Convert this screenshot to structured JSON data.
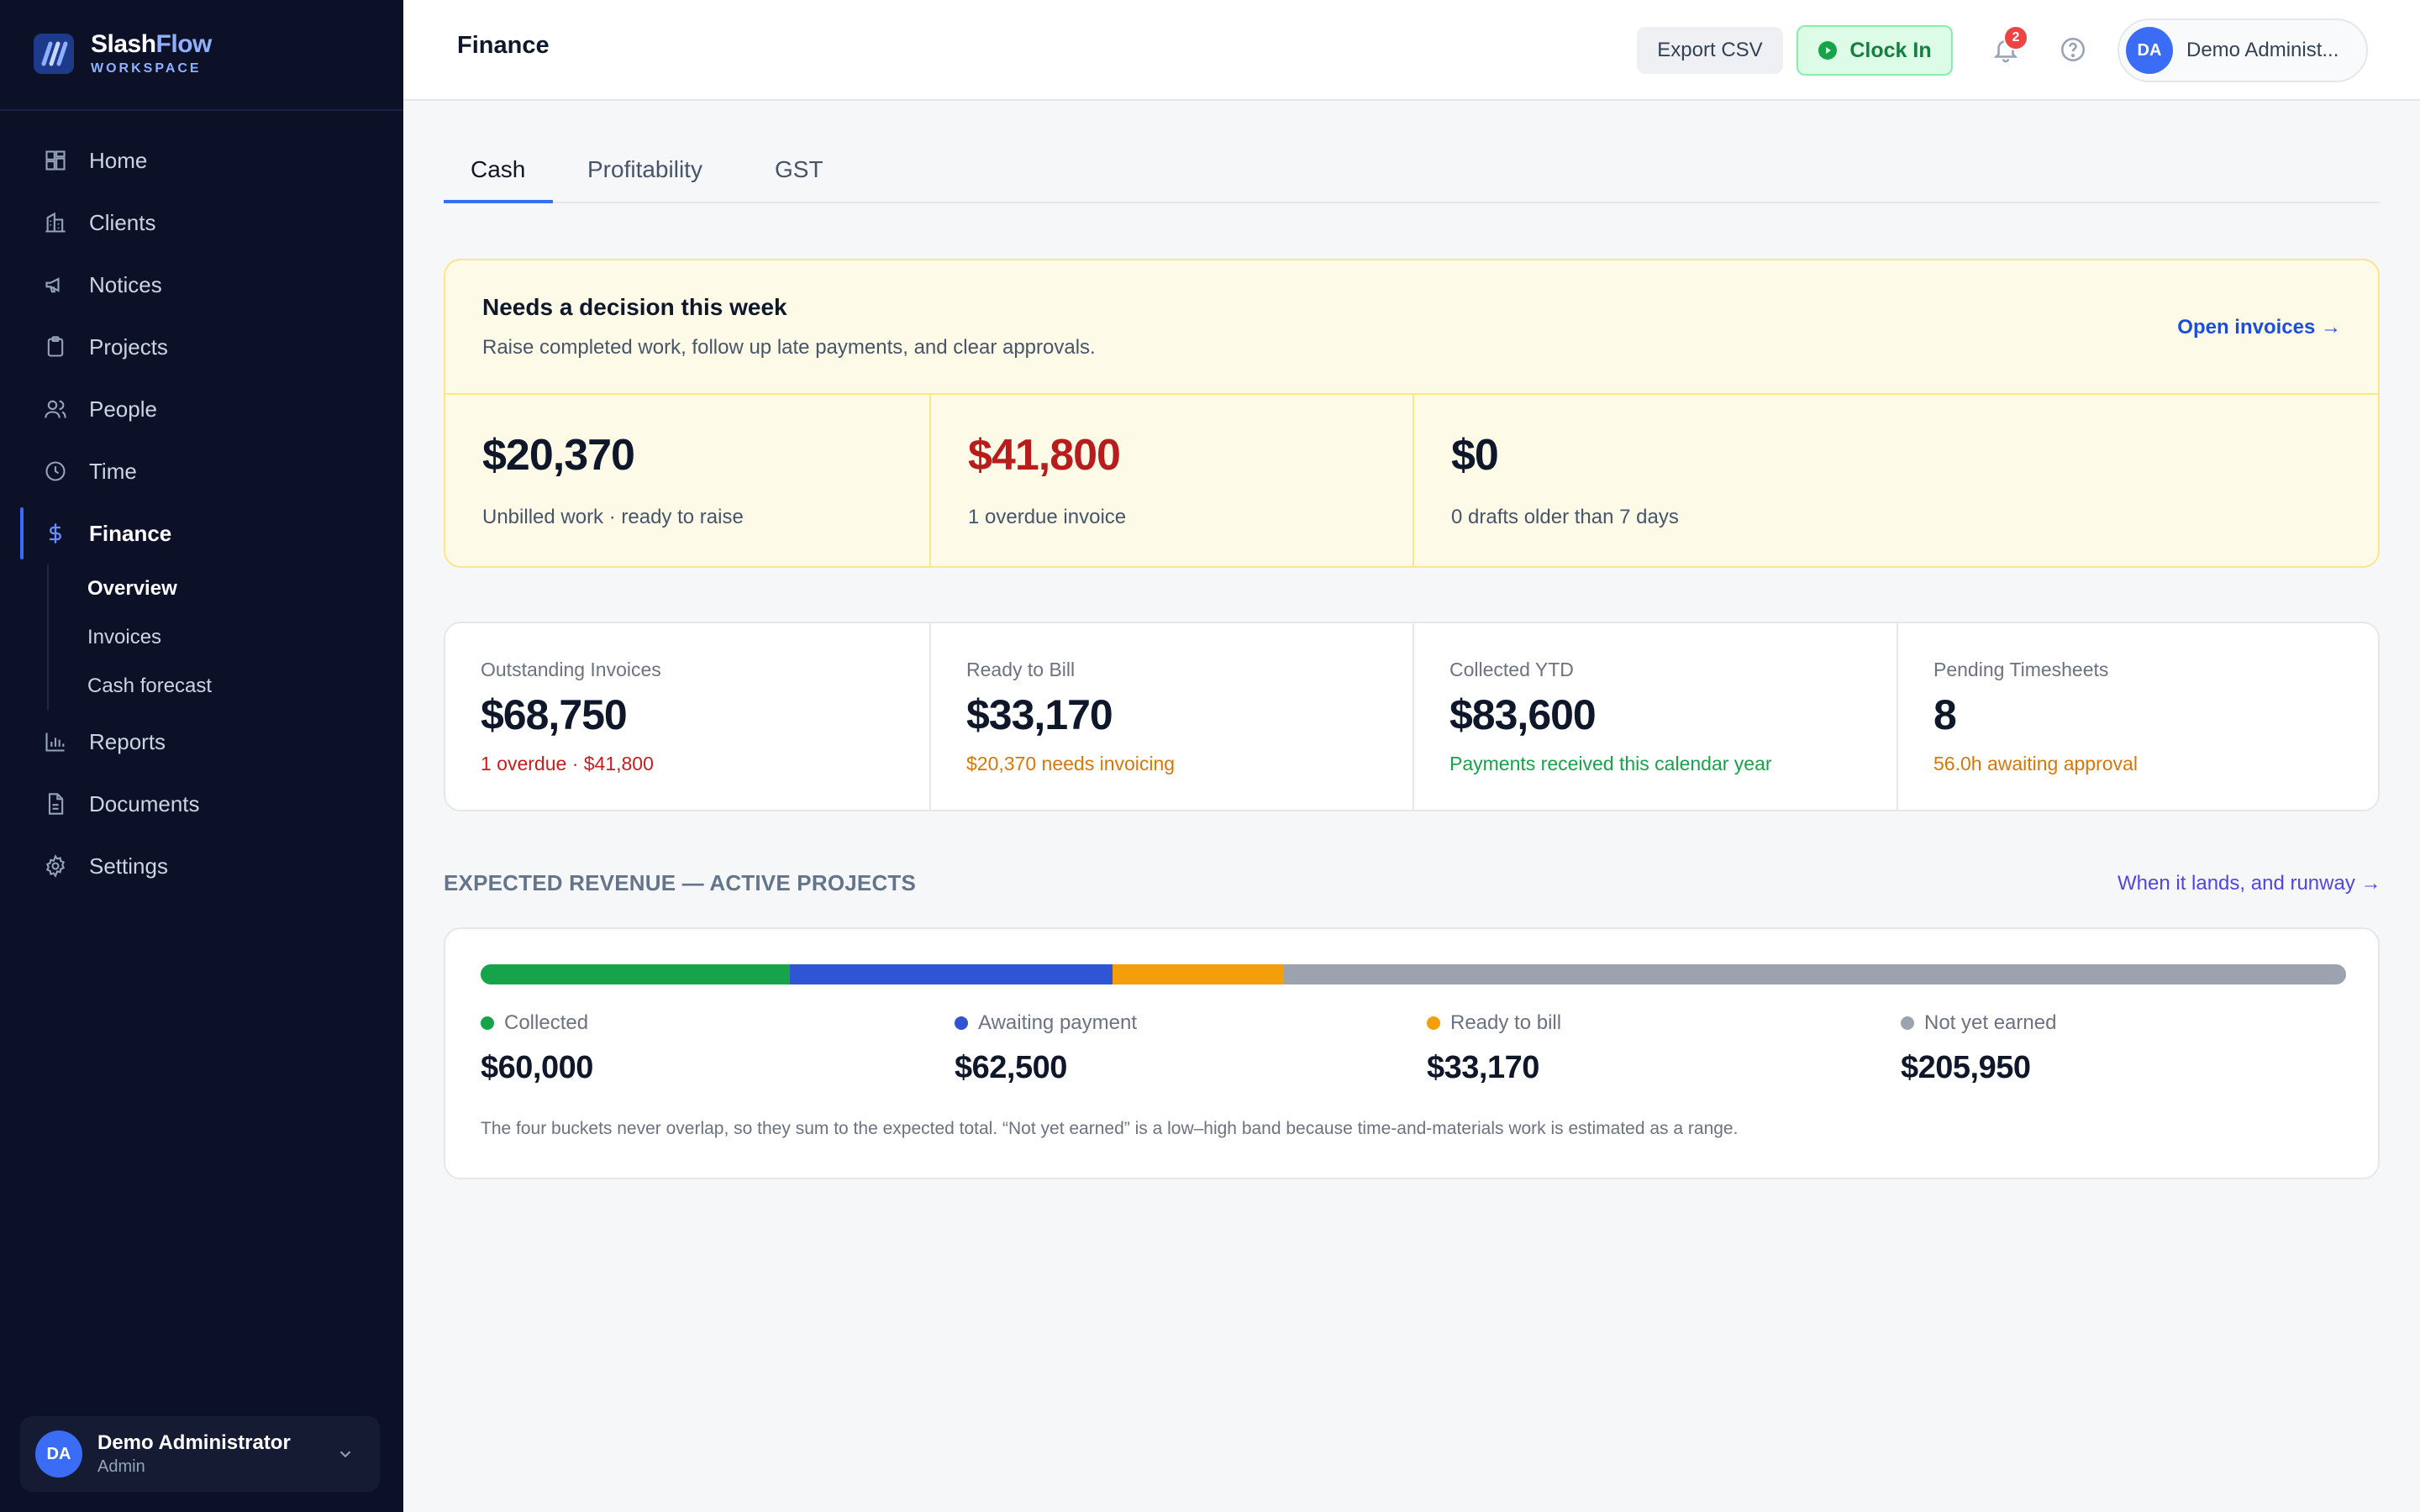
{
  "brand": {
    "name_a": "Slash",
    "name_b": "Flow",
    "subtitle": "WORKSPACE"
  },
  "nav": {
    "items": [
      {
        "label": "Home",
        "icon": "grid-icon"
      },
      {
        "label": "Clients",
        "icon": "building-icon"
      },
      {
        "label": "Notices",
        "icon": "megaphone-icon"
      },
      {
        "label": "Projects",
        "icon": "clipboard-icon"
      },
      {
        "label": "People",
        "icon": "users-icon"
      },
      {
        "label": "Time",
        "icon": "clock-icon"
      },
      {
        "label": "Finance",
        "icon": "dollar-icon"
      },
      {
        "label": "Reports",
        "icon": "bar-chart-icon"
      },
      {
        "label": "Documents",
        "icon": "document-icon"
      },
      {
        "label": "Settings",
        "icon": "gear-icon"
      }
    ],
    "active": "Finance",
    "finance_sub": [
      {
        "label": "Overview"
      },
      {
        "label": "Invoices"
      },
      {
        "label": "Cash forecast"
      }
    ],
    "active_sub": "Overview"
  },
  "user": {
    "initials": "DA",
    "name": "Demo Administrator",
    "role": "Admin",
    "pill_name": "Demo Administ..."
  },
  "header": {
    "title": "Finance",
    "export_label": "Export CSV",
    "clock_label": "Clock In",
    "notifications_count": "2"
  },
  "tabs": [
    {
      "label": "Cash"
    },
    {
      "label": "Profitability"
    },
    {
      "label": "GST"
    }
  ],
  "active_tab": "Cash",
  "decision": {
    "title": "Needs a decision this week",
    "subtitle": "Raise completed work, follow up late payments, and clear approvals.",
    "link": "Open invoices →",
    "cells": [
      {
        "value": "$20,370",
        "label": "Unbilled work · ready to raise",
        "alert": false
      },
      {
        "value": "$41,800",
        "label": "1 overdue invoice",
        "alert": true
      },
      {
        "value": "$0",
        "label": "0 drafts older than 7 days",
        "alert": false
      }
    ]
  },
  "stats": [
    {
      "label": "Outstanding Invoices",
      "value": "$68,750",
      "note": "1 overdue · $41,800",
      "note_color": "#c81e1e"
    },
    {
      "label": "Ready to Bill",
      "value": "$33,170",
      "note": "$20,370 needs invoicing",
      "note_color": "#d97706"
    },
    {
      "label": "Collected YTD",
      "value": "$83,600",
      "note": "Payments received this calendar year",
      "note_color": "#16a34a"
    },
    {
      "label": "Pending Timesheets",
      "value": "8",
      "note": "56.0h awaiting approval",
      "note_color": "#d97706"
    }
  ],
  "revenue": {
    "title": "EXPECTED REVENUE — ACTIVE PROJECTS",
    "link": "When it lands, and runway →",
    "buckets": [
      {
        "label": "Collected",
        "value": "$60,000",
        "amount": 60000,
        "color": "#16a34a"
      },
      {
        "label": "Awaiting payment",
        "value": "$62,500",
        "amount": 62500,
        "color": "#2f55d4"
      },
      {
        "label": "Ready to bill",
        "value": "$33,170",
        "amount": 33170,
        "color": "#f59e0b"
      },
      {
        "label": "Not yet earned",
        "value": "$205,950",
        "amount": 205950,
        "color": "#9ca3af"
      }
    ],
    "footnote": "The four buckets never overlap, so they sum to the expected total. “Not yet earned” is a low–high band because time-and-materials work is estimated as a range."
  }
}
